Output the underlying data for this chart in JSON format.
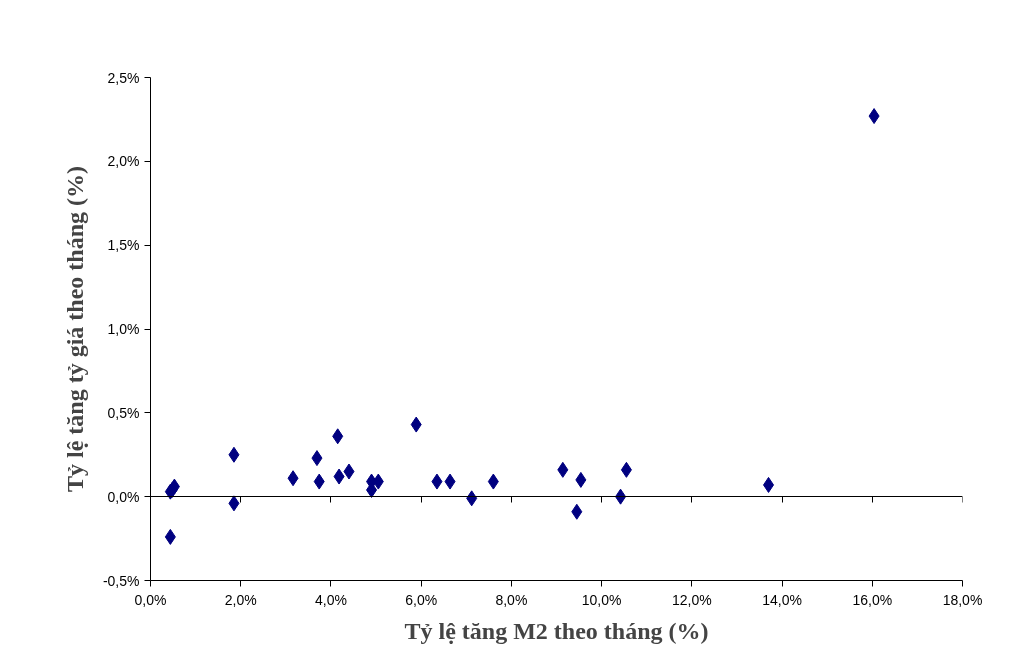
{
  "chart_data": {
    "type": "scatter",
    "xlabel": "Tỷ lệ tăng M2 theo tháng (%)",
    "ylabel": "Tỷ lệ tăng tỷ giá theo tháng (%)",
    "x": [
      0.44,
      0.48,
      0.53,
      0.44,
      1.85,
      1.85,
      3.16,
      3.69,
      3.74,
      4.15,
      4.18,
      4.4,
      4.9,
      4.9,
      5.05,
      5.89,
      6.35,
      6.64,
      7.12,
      7.6,
      9.14,
      9.54,
      9.45,
      10.42,
      10.55,
      13.7,
      16.04
    ],
    "series": [
      {
        "color": "#000080",
        "values": [
          0.03,
          0.04,
          0.06,
          -0.24,
          0.25,
          -0.04,
          0.11,
          0.23,
          0.09,
          0.36,
          0.12,
          0.15,
          0.09,
          0.04,
          0.09,
          0.43,
          0.09,
          0.09,
          -0.01,
          0.09,
          0.16,
          0.1,
          -0.09,
          0.0,
          0.16,
          0.07,
          2.27
        ]
      }
    ],
    "marker": "diamond",
    "xlim": [
      0,
      18
    ],
    "ylim": [
      -0.5,
      2.5
    ],
    "xticks": [
      {
        "value": 0,
        "label": "0,0%"
      },
      {
        "value": 2,
        "label": "2,0%"
      },
      {
        "value": 4,
        "label": "4,0%"
      },
      {
        "value": 6,
        "label": "6,0%"
      },
      {
        "value": 8,
        "label": "8,0%"
      },
      {
        "value": 10,
        "label": "10,0%"
      },
      {
        "value": 12,
        "label": "12,0%"
      },
      {
        "value": 14,
        "label": "14,0%"
      },
      {
        "value": 16,
        "label": "16,0%"
      },
      {
        "value": 18,
        "label": "18,0%"
      }
    ],
    "yticks": [
      {
        "value": -0.5,
        "label": "-0,5%"
      },
      {
        "value": 0,
        "label": "0,0%"
      },
      {
        "value": 0.5,
        "label": "0,5%"
      },
      {
        "value": 1,
        "label": "1,0%"
      },
      {
        "value": 1.5,
        "label": "1,5%"
      },
      {
        "value": 2,
        "label": "2,0%"
      },
      {
        "value": 2.5,
        "label": "2,5%"
      }
    ]
  }
}
